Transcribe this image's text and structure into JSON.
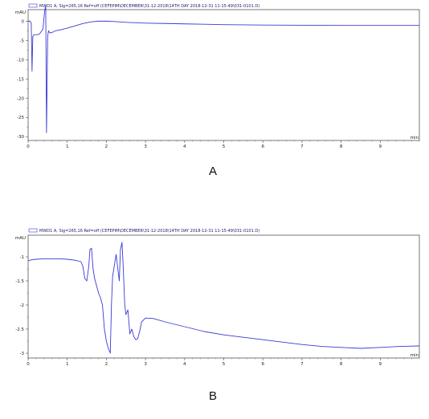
{
  "colors": {
    "trace": "#3a3ad6",
    "frame": "#555555",
    "text": "#222222"
  },
  "chart_data": [
    {
      "type": "line",
      "panel_label": "A",
      "legend": "MWD1 A, Sig=265,16 Ref=off (CEFEPIM\\DECEMBER\\31-12-2018\\14TH DAY 2018-12-31 11-15-49\\031-0101.D)",
      "ylabel": "mAU",
      "xlabel": "min",
      "xlim": [
        0,
        10
      ],
      "ylim": [
        -31,
        3
      ],
      "y_ticks": [
        0,
        -5,
        -10,
        -15,
        -20,
        -25,
        -30
      ],
      "y_tick_labels": [
        "0",
        "-5",
        "-10",
        "-15",
        "-20",
        "-25",
        "-30"
      ],
      "x_ticks": [
        0,
        1,
        2,
        3,
        4,
        5,
        6,
        7,
        8,
        9
      ],
      "x_tick_labels": [
        "0",
        "1",
        "2",
        "3",
        "4",
        "5",
        "6",
        "7",
        "8",
        "9"
      ],
      "series": [
        {
          "x": [
            0,
            0.05,
            0.08,
            0.1,
            0.12,
            0.15,
            0.2,
            0.25,
            0.3,
            0.35,
            0.38,
            0.42,
            0.45,
            0.47,
            0.5,
            0.52,
            0.55,
            0.6,
            0.7,
            0.8,
            1.0,
            1.2,
            1.4,
            1.6,
            1.8,
            2.0,
            2.2,
            2.5,
            3.0,
            3.5,
            4.0,
            4.5,
            5.0,
            5.5,
            6.0,
            7.0,
            8.0,
            9.0,
            10.0
          ],
          "y": [
            0,
            0,
            -0.5,
            -13,
            -4,
            -3.5,
            -3.5,
            -3.5,
            -3.2,
            -2.5,
            -2.0,
            2.5,
            4.0,
            -29,
            -4,
            -2.5,
            -3.0,
            -3.0,
            -2.5,
            -2.3,
            -1.8,
            -1.2,
            -0.6,
            -0.2,
            0.0,
            0.0,
            -0.1,
            -0.3,
            -0.5,
            -0.6,
            -0.7,
            -0.8,
            -0.9,
            -0.95,
            -1.0,
            -1.05,
            -1.1,
            -1.1,
            -1.1
          ]
        }
      ]
    },
    {
      "type": "line",
      "panel_label": "B",
      "legend": "MWD1 A, Sig=265,16 Ref=off (CEFEPIM\\DECEMBER\\31-12-2018\\14TH DAY 2018-12-31 11-15-49\\031-0101.D)",
      "ylabel": "mAU",
      "xlabel": "min",
      "xlim": [
        0,
        10
      ],
      "ylim": [
        -3.1,
        -0.55
      ],
      "y_ticks": [
        -1,
        -1.5,
        -2,
        -2.5,
        -3
      ],
      "y_tick_labels": [
        "-1",
        "-1.5",
        "-2",
        "-2.5",
        "-3"
      ],
      "x_ticks": [
        0,
        1,
        2,
        3,
        4,
        5,
        6,
        7,
        8,
        9
      ],
      "x_tick_labels": [
        "0",
        "1",
        "2",
        "3",
        "4",
        "5",
        "6",
        "7",
        "8",
        "9"
      ],
      "series": [
        {
          "x": [
            0,
            0.1,
            0.2,
            0.4,
            0.6,
            0.8,
            1.0,
            1.2,
            1.35,
            1.4,
            1.45,
            1.5,
            1.55,
            1.58,
            1.62,
            1.66,
            1.7,
            1.75,
            1.8,
            1.85,
            1.9,
            1.95,
            2.0,
            2.05,
            2.1,
            2.13,
            2.16,
            2.2,
            2.25,
            2.3,
            2.33,
            2.36,
            2.4,
            2.43,
            2.47,
            2.5,
            2.55,
            2.6,
            2.65,
            2.7,
            2.75,
            2.8,
            2.85,
            2.9,
            3.0,
            3.2,
            3.5,
            4.0,
            4.5,
            5.0,
            5.5,
            6.0,
            6.5,
            7.0,
            7.5,
            8.0,
            8.5,
            9.0,
            9.5,
            10.0
          ],
          "y": [
            -1.08,
            -1.06,
            -1.05,
            -1.04,
            -1.04,
            -1.04,
            -1.05,
            -1.07,
            -1.1,
            -1.2,
            -1.45,
            -1.5,
            -1.2,
            -0.85,
            -0.82,
            -1.25,
            -1.45,
            -1.6,
            -1.75,
            -1.85,
            -2.0,
            -2.5,
            -2.75,
            -2.9,
            -3.0,
            -2.0,
            -1.4,
            -1.2,
            -0.95,
            -1.3,
            -1.5,
            -0.85,
            -0.7,
            -1.2,
            -2.0,
            -2.2,
            -2.1,
            -2.6,
            -2.5,
            -2.65,
            -2.72,
            -2.7,
            -2.55,
            -2.35,
            -2.27,
            -2.28,
            -2.35,
            -2.45,
            -2.55,
            -2.62,
            -2.67,
            -2.72,
            -2.77,
            -2.82,
            -2.86,
            -2.88,
            -2.9,
            -2.88,
            -2.86,
            -2.85
          ]
        }
      ]
    }
  ]
}
